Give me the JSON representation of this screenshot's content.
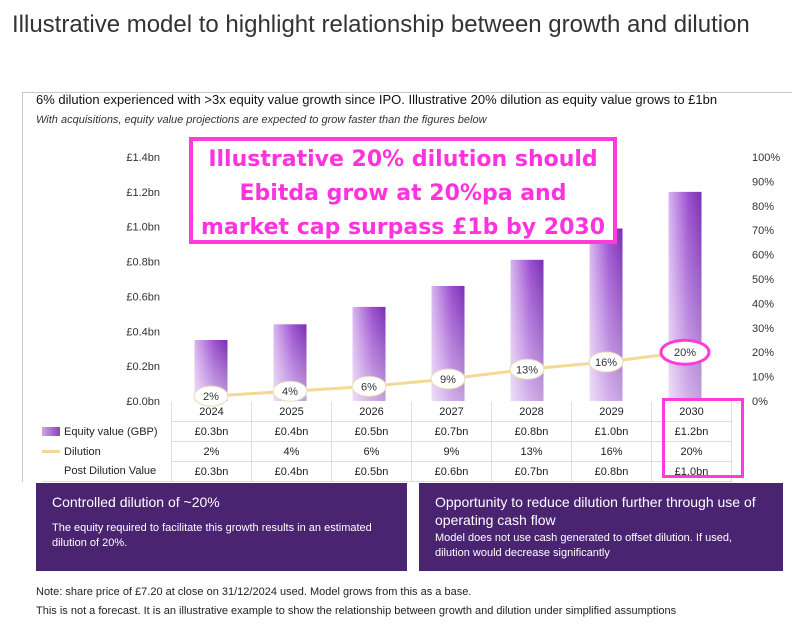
{
  "page": {
    "title": "Illustrative model to highlight relationship between growth and dilution",
    "subtitle": "6% dilution experienced with >3x equity value growth since IPO. Illustrative 20% dilution as equity value grows to £1bn",
    "subtitle_italic": "With acquisitions, equity value projections are expected to grow faster than the figures below"
  },
  "callout": {
    "lines": [
      "Illustrative 20% dilution should",
      "Ebitda grow at 20%pa and",
      "market cap surpass £1b by 2030"
    ],
    "color": "#ff33dd"
  },
  "chart_data": {
    "type": "bar",
    "categories": [
      "2024",
      "2025",
      "2026",
      "2027",
      "2028",
      "2029",
      "2030"
    ],
    "series": [
      {
        "name": "Equity value (GBP)",
        "type": "bar",
        "axis": "left",
        "values": [
          0.35,
          0.44,
          0.54,
          0.66,
          0.81,
          0.99,
          1.2
        ],
        "color": "#9b4fcf"
      },
      {
        "name": "Dilution",
        "type": "line",
        "axis": "right",
        "values": [
          2,
          4,
          6,
          9,
          13,
          16,
          20
        ],
        "labels": [
          "2%",
          "4%",
          "6%",
          "9%",
          "13%",
          "16%",
          "20%"
        ],
        "color": "#f3d896"
      }
    ],
    "y_left": {
      "min": 0,
      "max": 1.4,
      "ticks": [
        "£0.0bn",
        "£0.2bn",
        "£0.4bn",
        "£0.6bn",
        "£0.8bn",
        "£1.0bn",
        "£1.2bn",
        "£1.4bn"
      ]
    },
    "y_right": {
      "min": 0,
      "max": 100,
      "ticks": [
        "0%",
        "10%",
        "20%",
        "30%",
        "40%",
        "50%",
        "60%",
        "70%",
        "80%",
        "90%",
        "100%"
      ]
    },
    "grid": false,
    "highlight_category": "2030"
  },
  "table": {
    "rows": [
      {
        "label": "Equity value (GBP)",
        "swatch": "bar",
        "values": [
          "£0.3bn",
          "£0.4bn",
          "£0.5bn",
          "£0.7bn",
          "£0.8bn",
          "£1.0bn",
          "£1.2bn"
        ]
      },
      {
        "label": "Dilution",
        "swatch": "line",
        "values": [
          "2%",
          "4%",
          "6%",
          "9%",
          "13%",
          "16%",
          "20%"
        ]
      },
      {
        "label": "Post Dilution Value",
        "swatch": "none",
        "values": [
          "£0.3bn",
          "£0.4bn",
          "£0.5bn",
          "£0.6bn",
          "£0.7bn",
          "£0.8bn",
          "£1.0bn"
        ]
      }
    ]
  },
  "panels": {
    "left": {
      "title": "Controlled dilution of ~20%",
      "body": "The equity required to facilitate this growth results in an estimated dilution of 20%."
    },
    "right": {
      "title": "Opportunity to reduce dilution further through use of operating cash flow",
      "body": "Model does not use cash generated to offset dilution. If used, dilution would decrease significantly"
    },
    "color": "#4a2371"
  },
  "notes": {
    "note1": "Note: share price of £7.20 at close on 31/12/2024 used. Model grows from this as a base.",
    "note2": "This is not a forecast. It is an illustrative example to show the relationship between growth and dilution under simplified assumptions"
  }
}
